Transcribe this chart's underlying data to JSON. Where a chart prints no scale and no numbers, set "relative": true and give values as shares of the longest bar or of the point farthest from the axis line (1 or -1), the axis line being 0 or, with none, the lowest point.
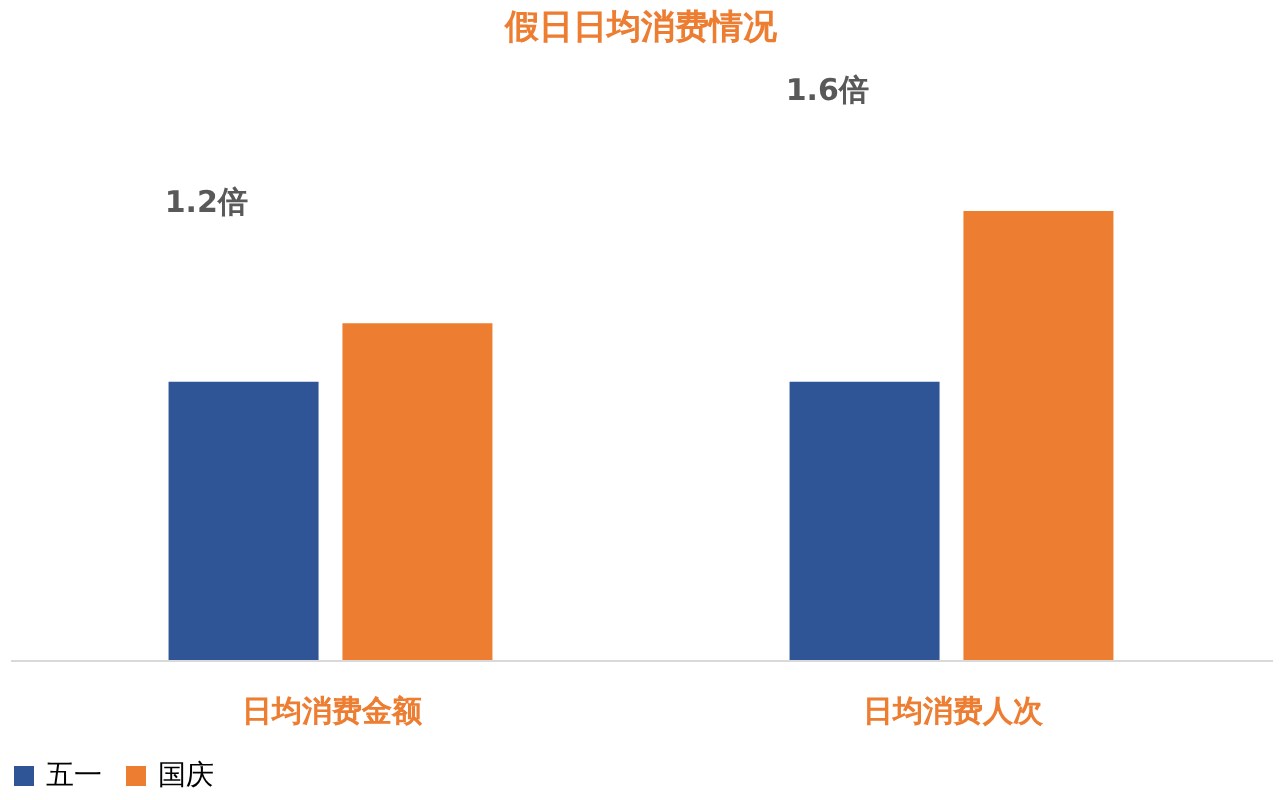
{
  "chart_data": {
    "type": "bar",
    "title": "假日日均消费情况",
    "relative": true,
    "categories": [
      "日均消费金额",
      "日均消费人次"
    ],
    "series": [
      {
        "name": "五一",
        "color": "#2f5597",
        "values": [
          0.62,
          0.62
        ]
      },
      {
        "name": "国庆",
        "color": "#ed7d31",
        "values": [
          0.75,
          1.0
        ]
      }
    ],
    "annotations": [
      "1.2倍",
      "1.6倍"
    ],
    "legend": "bottom",
    "grid": false
  }
}
